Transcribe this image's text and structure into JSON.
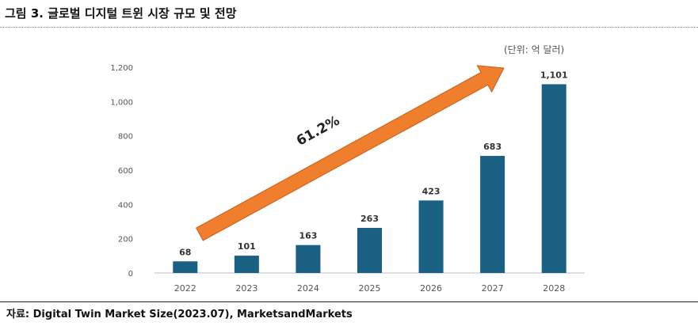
{
  "figure": {
    "title": "그림 3. 글로벌 디지털 트윈 시장 규모 및 전망",
    "unit": "(단위: 억 달러)",
    "source": "자료: Digital Twin Market Size(2023.07), MarketsandMarkets"
  },
  "chart_data": {
    "type": "bar",
    "categories": [
      "2022",
      "2023",
      "2024",
      "2025",
      "2026",
      "2027",
      "2028"
    ],
    "values": [
      68,
      101,
      163,
      263,
      423,
      683,
      1101
    ],
    "data_labels": [
      "68",
      "101",
      "163",
      "263",
      "423",
      "683",
      "1,101"
    ],
    "yticks": [
      0,
      200,
      400,
      600,
      800,
      1000,
      1200
    ],
    "ytick_labels": [
      "0",
      "200",
      "400",
      "600",
      "800",
      "1,000",
      "1,200"
    ],
    "ylim": [
      0,
      1200
    ],
    "grid": false,
    "bar_color": "#1a6082",
    "annotation": {
      "text": "61.2%",
      "arrow_color": "#f07f2d"
    }
  }
}
